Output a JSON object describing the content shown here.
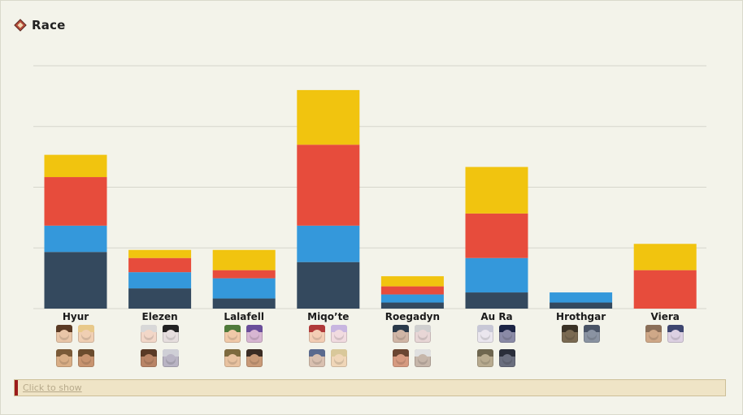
{
  "section": {
    "title": "Race",
    "icon": "diamond-marker-icon"
  },
  "chart_data": {
    "type": "bar",
    "stacked": true,
    "categories": [
      "Hyur",
      "Elezen",
      "Lalafell",
      "Miqo’te",
      "Roegadyn",
      "Au Ra",
      "Hrothgar",
      "Viera"
    ],
    "series": [
      {
        "color": "#34495e",
        "values": [
          28,
          10,
          5,
          23,
          3,
          8,
          3,
          0
        ]
      },
      {
        "color": "#3498db",
        "values": [
          13,
          8,
          10,
          18,
          4,
          17,
          5,
          0
        ]
      },
      {
        "color": "#e74c3c",
        "values": [
          24,
          7,
          4,
          40,
          4,
          22,
          0,
          19
        ]
      },
      {
        "color": "#f1c40f",
        "values": [
          11,
          4,
          10,
          27,
          5,
          23,
          0,
          13
        ]
      }
    ],
    "ylim": [
      0,
      120
    ],
    "gridlines": [
      0,
      30,
      60,
      90,
      120
    ],
    "grid": true
  },
  "faces": [
    {
      "category": "Hyur",
      "items": [
        {
          "icon": "hyur-female-midlander-portrait",
          "hair": "#5a3a24",
          "skin": "#e9c6a8"
        },
        {
          "icon": "hyur-female-highlander-portrait",
          "hair": "#e8c98a",
          "skin": "#f0cfb3"
        },
        {
          "icon": "hyur-male-midlander-portrait",
          "hair": "#7a5a38",
          "skin": "#d9ae86"
        },
        {
          "icon": "hyur-male-highlander-portrait",
          "hair": "#6b4c2e",
          "skin": "#c89470"
        }
      ]
    },
    {
      "category": "Elezen",
      "items": [
        {
          "icon": "elezen-female-wildwood-portrait",
          "hair": "#d8d8d8",
          "skin": "#f2d7c8"
        },
        {
          "icon": "elezen-female-duskwight-portrait",
          "hair": "#222222",
          "skin": "#e6dede"
        },
        {
          "icon": "elezen-male-wildwood-portrait",
          "hair": "#5a3a26",
          "skin": "#b98466"
        },
        {
          "icon": "elezen-male-duskwight-portrait",
          "hair": "#cfcfd6",
          "skin": "#b9b4c4"
        }
      ]
    },
    {
      "category": "Lalafell",
      "items": [
        {
          "icon": "lalafell-female-plainsfolk-portrait",
          "hair": "#4f7a3a",
          "skin": "#f0c9a8"
        },
        {
          "icon": "lalafell-female-dunesfolk-portrait",
          "hair": "#6a4e9a",
          "skin": "#d7b6d2"
        },
        {
          "icon": "lalafell-male-plainsfolk-portrait",
          "hair": "#7d6a3f",
          "skin": "#e8c2a0"
        },
        {
          "icon": "lalafell-male-dunesfolk-portrait",
          "hair": "#3a2c24",
          "skin": "#c99a78"
        }
      ]
    },
    {
      "category": "Miqo’te",
      "items": [
        {
          "icon": "miqote-female-sun-portrait",
          "hair": "#b03a3a",
          "skin": "#f3cdb4"
        },
        {
          "icon": "miqote-female-moon-portrait",
          "hair": "#c8b6e0",
          "skin": "#f1dbe0"
        },
        {
          "icon": "miqote-male-sun-portrait",
          "hair": "#5a6a8e",
          "skin": "#d9c0b0"
        },
        {
          "icon": "miqote-male-moon-portrait",
          "hair": "#d9c89a",
          "skin": "#f0d6b8"
        }
      ]
    },
    {
      "category": "Roegadyn",
      "items": [
        {
          "icon": "roegadyn-female-sea-wolf-portrait",
          "hair": "#2a3a4a",
          "skin": "#d0b6a6"
        },
        {
          "icon": "roegadyn-female-hellsguard-portrait",
          "hair": "#cfcfcf",
          "skin": "#e8d6d6"
        },
        {
          "icon": "roegadyn-male-sea-wolf-portrait",
          "hair": "#6a4632",
          "skin": "#d69a80"
        },
        {
          "icon": "roegadyn-male-hellsguard-portrait",
          "hair": "#e0e0e0",
          "skin": "#c6b6aa"
        }
      ]
    },
    {
      "category": "Au Ra",
      "items": [
        {
          "icon": "aura-female-raen-portrait",
          "hair": "#c8c8d6",
          "skin": "#eae6ee"
        },
        {
          "icon": "aura-female-xaela-portrait",
          "hair": "#1c2444",
          "skin": "#8a8aa6"
        },
        {
          "icon": "aura-male-raen-portrait",
          "hair": "#6e6650",
          "skin": "#b8ab90"
        },
        {
          "icon": "aura-male-xaela-portrait",
          "hair": "#2a2e3a",
          "skin": "#6a6e7e"
        }
      ]
    },
    {
      "category": "Hrothgar",
      "items": [
        {
          "icon": "hrothgar-helions-portrait",
          "hair": "#3a3226",
          "skin": "#7a6a52"
        },
        {
          "icon": "hrothgar-lost-portrait",
          "hair": "#4a5466",
          "skin": "#8a93a2"
        }
      ]
    },
    {
      "category": "Viera",
      "items": [
        {
          "icon": "viera-rava-portrait",
          "hair": "#8a6e58",
          "skin": "#cfa888"
        },
        {
          "icon": "viera-veena-portrait",
          "hair": "#3e4670",
          "skin": "#dcd0e2"
        }
      ]
    }
  ],
  "show_toggle": {
    "label": "Click to show"
  }
}
